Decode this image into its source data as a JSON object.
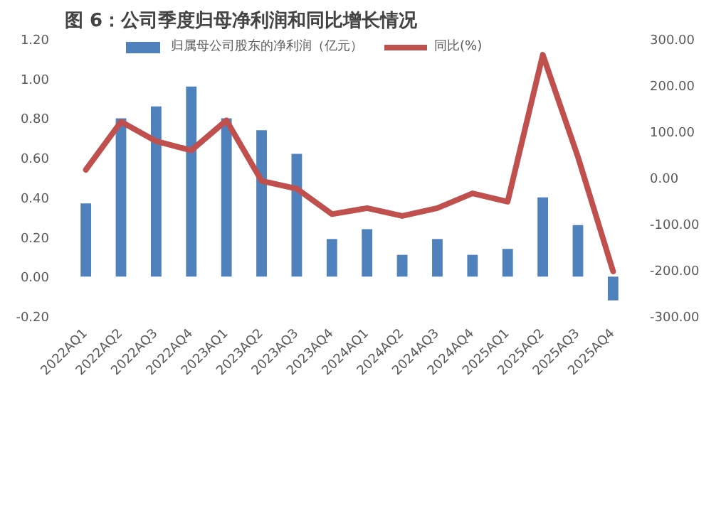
{
  "chart_data": {
    "type": "bar",
    "title": "图 6：公司季度归母净利润和同比增长情况",
    "categories": [
      "2022AQ1",
      "2022AQ2",
      "2022AQ3",
      "2022AQ4",
      "2023AQ1",
      "2023AQ2",
      "2023AQ3",
      "2023AQ4",
      "2024AQ1",
      "2024AQ2",
      "2024AQ3",
      "2024AQ4",
      "2025AQ1",
      "2025AQ2",
      "2025AQ3",
      "2025AQ4"
    ],
    "series": [
      {
        "name": "归属母公司股东的净利润（亿元）",
        "color": "#4f81bd",
        "values": [
          0.37,
          0.8,
          0.86,
          0.96,
          0.8,
          0.74,
          0.62,
          0.19,
          0.24,
          0.11,
          0.19,
          0.11,
          0.14,
          0.4,
          0.26,
          -0.12
        ]
      },
      {
        "name": "同比(%)",
        "type": "line",
        "axis": "y2",
        "color": "#c0504d",
        "values": [
          17,
          121,
          79,
          59,
          124,
          -7,
          -24,
          -79,
          -66,
          -83,
          -66,
          -34,
          -52,
          266,
          45,
          -203
        ]
      }
    ],
    "ylim": [
      -0.2,
      1.2
    ],
    "yticks": [
      {
        "value": -0.2,
        "label": "-0.20"
      },
      {
        "value": 0,
        "label": "0.00"
      },
      {
        "value": 0.2,
        "label": "0.20"
      },
      {
        "value": 0.4,
        "label": "0.40"
      },
      {
        "value": 0.6,
        "label": "0.60"
      },
      {
        "value": 0.8,
        "label": "0.80"
      },
      {
        "value": 1.0,
        "label": "1.00"
      },
      {
        "value": 1.2,
        "label": "1.20"
      }
    ],
    "y2lim": [
      -300,
      300
    ],
    "y2ticks": [
      {
        "value": -300,
        "label": "-300.00"
      },
      {
        "value": -200,
        "label": "-200.00"
      },
      {
        "value": -100,
        "label": "-100.00"
      },
      {
        "value": 0,
        "label": "0.00"
      },
      {
        "value": 100,
        "label": "100.00"
      },
      {
        "value": 200,
        "label": "200.00"
      },
      {
        "value": 300,
        "label": "300.00"
      }
    ],
    "legend": "top",
    "grid": false,
    "line_style": "solid"
  }
}
